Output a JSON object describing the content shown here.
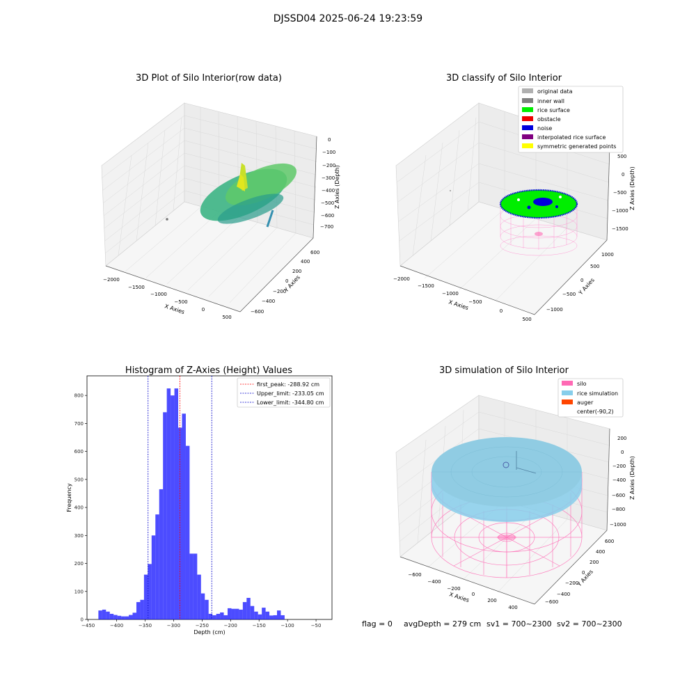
{
  "suptitle": "DJSSD04 2025-06-24 19:23:59",
  "panels": {
    "raw": {
      "title": "3D Plot of Silo Interior(row data)",
      "xlabel": "X Axies",
      "ylabel": "Y Axies",
      "zlabel": "Z Axies (Depth)",
      "xticks": [
        "−2000",
        "−1500",
        "−1000",
        "−500",
        "0",
        "500"
      ],
      "yticks": [
        "−600",
        "−400",
        "−200",
        "0",
        "200",
        "400",
        "600"
      ],
      "zticks": [
        "0",
        "−100",
        "−200",
        "−300",
        "−400",
        "−500",
        "−600",
        "−700"
      ]
    },
    "classify": {
      "title": "3D classify of Silo Interior",
      "xlabel": "X Axies",
      "ylabel": "Y Axies",
      "zlabel": "Z Axies (Depth)",
      "xticks": [
        "−2000",
        "−1500",
        "−1000",
        "−500",
        "0",
        "500"
      ],
      "yticks": [
        "−1000",
        "−500",
        "0",
        "500",
        "1000"
      ],
      "zticks": [
        "500",
        "0",
        "−500",
        "−1000",
        "−1500"
      ],
      "legend": [
        {
          "label": "original data",
          "color": "#b0b0b0"
        },
        {
          "label": "inner wall",
          "color": "#808080"
        },
        {
          "label": "rice surface",
          "color": "#00ee00"
        },
        {
          "label": "obstacle",
          "color": "#ee0000"
        },
        {
          "label": "noise",
          "color": "#0000dd"
        },
        {
          "label": "interpolated rice surface",
          "color": "#800080"
        },
        {
          "label": "symmetric generated points",
          "color": "#ffff00"
        }
      ]
    },
    "simulation": {
      "title": "3D simulation of Silo Interior",
      "xlabel": "X Axies",
      "ylabel": "Y Axies",
      "zlabel": "Z Axies (Depth)",
      "xticks": [
        "−600",
        "−400",
        "−200",
        "0",
        "200",
        "400"
      ],
      "yticks": [
        "−600",
        "−400",
        "−200",
        "0",
        "200",
        "400",
        "600"
      ],
      "zticks": [
        "200",
        "0",
        "−200",
        "−400",
        "−600",
        "−800",
        "−1000"
      ],
      "legend": [
        {
          "label": "silo",
          "color": "#ff69b4"
        },
        {
          "label": "rice simulation",
          "color": "#87ceeb"
        },
        {
          "label": "auger",
          "color": "#ff4500"
        },
        {
          "label": "center(-90,2)",
          "color": "none"
        }
      ]
    }
  },
  "chart_data": {
    "type": "bar",
    "title": "Histogram of Z-Axies (Height) Values",
    "xlabel": "Depth (cm)",
    "ylabel": "Frequency",
    "xlim": [
      -452,
      -22
    ],
    "ylim": [
      0,
      870
    ],
    "xticks": [
      -450,
      -400,
      -350,
      -300,
      -250,
      -200,
      -150,
      -100,
      -50
    ],
    "yticks": [
      0,
      100,
      200,
      300,
      400,
      500,
      600,
      700,
      800
    ],
    "bin_start": -432,
    "bin_width": 6.67,
    "values": [
      32,
      35,
      28,
      20,
      16,
      13,
      11,
      11,
      16,
      24,
      62,
      70,
      160,
      198,
      300,
      375,
      465,
      740,
      825,
      800,
      825,
      685,
      735,
      620,
      235,
      235,
      160,
      93,
      70,
      20,
      15,
      20,
      25,
      15,
      40,
      38,
      38,
      35,
      62,
      77,
      48,
      28,
      18,
      42,
      28,
      14,
      15,
      32,
      15
    ],
    "bar_color": "#0000ff",
    "vlines": [
      {
        "x": -288.92,
        "color": "#ff0000",
        "label": "first_peak: -288.92 cm"
      },
      {
        "x": -233.05,
        "color": "#0000cc",
        "label": "Upper_limit: -233.05 cm"
      },
      {
        "x": -344.8,
        "color": "#0000cc",
        "label": "Lower_limit: -344.80 cm"
      }
    ],
    "legend_position": "top-right"
  },
  "footer": {
    "flag": "flag = 0",
    "avg": "avgDepth = 279 cm",
    "sv1": "sv1 = 700~2300",
    "sv2": "sv2 = 700~2300"
  }
}
